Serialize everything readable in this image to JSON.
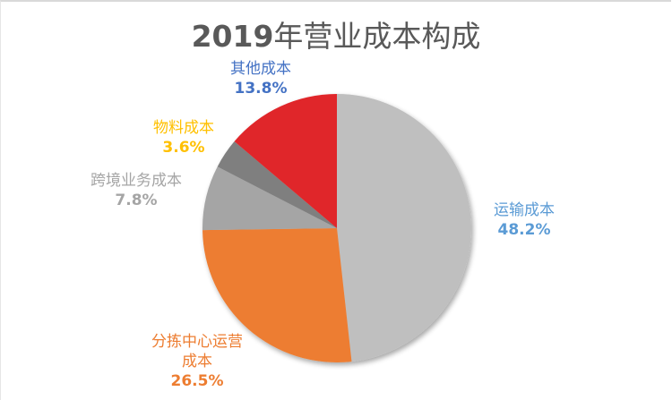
{
  "chart_data": {
    "type": "pie",
    "title": "2019年营业成本构成",
    "categories": [
      "运输成本",
      "分拣中心运营成本",
      "跨境业务成本",
      "物料成本",
      "其他成本"
    ],
    "values": [
      48.2,
      26.5,
      7.8,
      3.6,
      13.8
    ],
    "unit": "%",
    "labels": [
      "48.2%",
      "26.5%",
      "7.8%",
      "3.6%",
      "13.8%"
    ],
    "colors": [
      "#bfbfbf",
      "#ed7d31",
      "#a5a5a5",
      "#7f7f7f",
      "#e0262a"
    ],
    "label_colors": [
      "#5b9bd5",
      "#ed7d31",
      "#a5a5a5",
      "#ffc000",
      "#4472c4"
    ],
    "start_angle_deg": 0,
    "direction": "clockwise",
    "legend": "none (data labels)"
  },
  "title": {
    "year": "2019",
    "text": "年营业成本构成"
  },
  "labels": {
    "transport": {
      "name": "运输成本",
      "pct": "48.2%"
    },
    "sorting": {
      "name_line1": "分拣中心运营",
      "name_line2": "成本",
      "pct": "26.5%"
    },
    "crossborder": {
      "name": "跨境业务成本",
      "pct": "7.8%"
    },
    "material": {
      "name": "物料成本",
      "pct": "3.6%"
    },
    "other": {
      "name": "其他成本",
      "pct": "13.8%"
    }
  }
}
